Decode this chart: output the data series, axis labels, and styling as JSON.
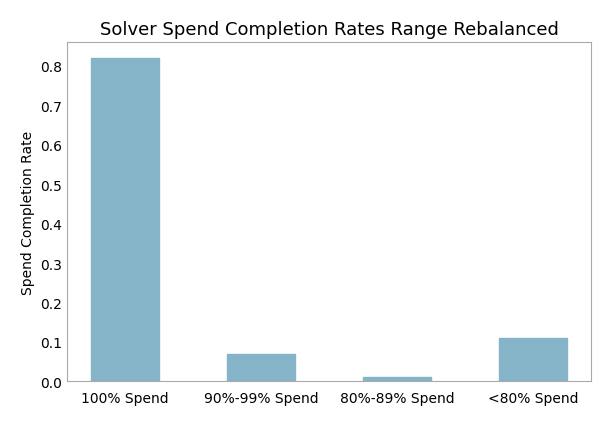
{
  "categories": [
    "100% Spend",
    "90%-99% Spend",
    "80%-89% Spend",
    "<80% Spend"
  ],
  "values": [
    0.82,
    0.07,
    0.01,
    0.11
  ],
  "bar_color": "#85b4c8",
  "title": "Solver Spend Completion Rates Range Rebalanced",
  "ylabel": "Spend Completion Rate",
  "ylim": [
    0,
    0.86
  ],
  "yticks": [
    0.0,
    0.1,
    0.2,
    0.3,
    0.4,
    0.5,
    0.6,
    0.7,
    0.8
  ],
  "title_fontsize": 13,
  "label_fontsize": 10,
  "tick_fontsize": 10,
  "bar_width": 0.5,
  "figsize": [
    6.12,
    4.27
  ],
  "dpi": 100
}
